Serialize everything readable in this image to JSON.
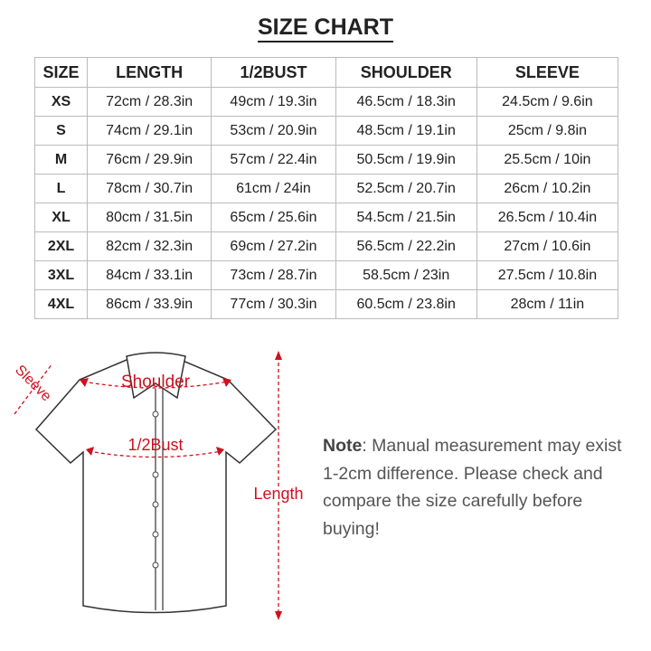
{
  "title": "SIZE CHART",
  "table": {
    "headers": [
      "SIZE",
      "LENGTH",
      "1/2BUST",
      "SHOULDER",
      "SLEEVE"
    ],
    "rows": [
      [
        "XS",
        "72cm / 28.3in",
        "49cm / 19.3in",
        "46.5cm / 18.3in",
        "24.5cm / 9.6in"
      ],
      [
        "S",
        "74cm / 29.1in",
        "53cm / 20.9in",
        "48.5cm / 19.1in",
        "25cm / 9.8in"
      ],
      [
        "M",
        "76cm / 29.9in",
        "57cm / 22.4in",
        "50.5cm / 19.9in",
        "25.5cm / 10in"
      ],
      [
        "L",
        "78cm / 30.7in",
        "61cm / 24in",
        "52.5cm / 20.7in",
        "26cm / 10.2in"
      ],
      [
        "XL",
        "80cm / 31.5in",
        "65cm / 25.6in",
        "54.5cm / 21.5in",
        "26.5cm / 10.4in"
      ],
      [
        "2XL",
        "82cm / 32.3in",
        "69cm / 27.2in",
        "56.5cm / 22.2in",
        "27cm / 10.6in"
      ],
      [
        "3XL",
        "84cm / 33.1in",
        "73cm / 28.7in",
        "58.5cm / 23in",
        "27.5cm / 10.8in"
      ],
      [
        "4XL",
        "86cm / 33.9in",
        "77cm / 30.3in",
        "60.5cm / 23.8in",
        "28cm / 11in"
      ]
    ]
  },
  "diagram": {
    "labels": {
      "sleeve": "Sleeve",
      "shoulder": "Shoulder",
      "bust": "1/2Bust",
      "length": "Length"
    },
    "accent": "#d0101e"
  },
  "note": {
    "label": "Note",
    "text": ": Manual measurement may exist 1-2cm difference. Please check and compare the size carefully before buying!"
  }
}
